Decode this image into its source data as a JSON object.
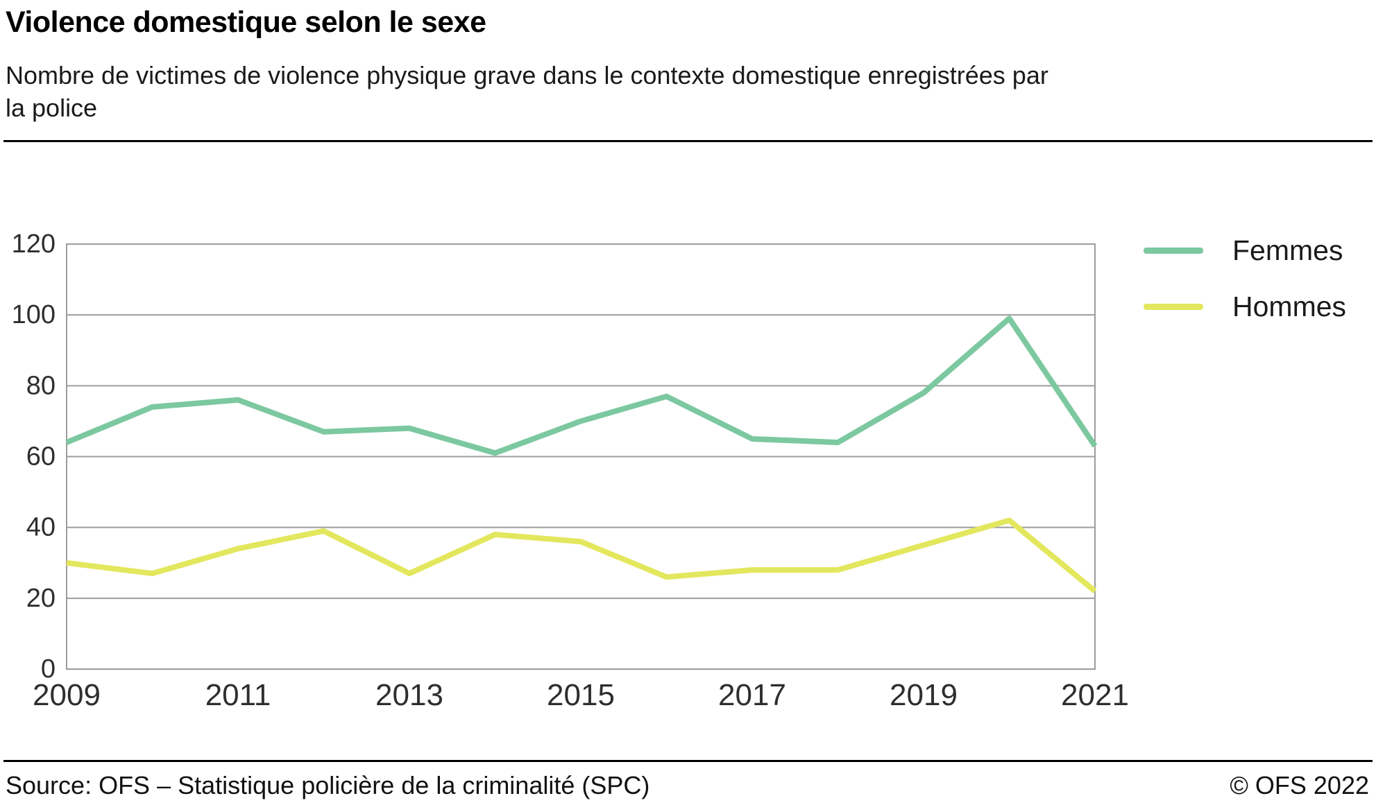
{
  "header": {
    "title": "Violence domestique selon le sexe",
    "subtitle": "Nombre de victimes de violence physique grave dans le contexte domestique enregistrées par la police"
  },
  "footer": {
    "source": "Source: OFS – Statistique policière de la criminalité (SPC)",
    "copyright": "© OFS 2022"
  },
  "chart_data": {
    "type": "line",
    "title": "Violence domestique selon le sexe",
    "subtitle": "Nombre de victimes de violence physique grave dans le contexte domestique enregistrées par la police",
    "x": [
      2009,
      2010,
      2011,
      2012,
      2013,
      2014,
      2015,
      2016,
      2017,
      2018,
      2019,
      2020,
      2021
    ],
    "series": [
      {
        "name": "Femmes",
        "color": "#7cc8a0",
        "values": [
          64,
          74,
          76,
          67,
          68,
          61,
          70,
          77,
          65,
          64,
          78,
          99,
          63
        ]
      },
      {
        "name": "Hommes",
        "color": "#e3e75d",
        "values": [
          30,
          27,
          34,
          39,
          27,
          38,
          36,
          26,
          28,
          28,
          35,
          42,
          22
        ]
      }
    ],
    "xlabel": "",
    "ylabel": "",
    "ylim": [
      0,
      120
    ],
    "ytick_step": 20,
    "ytick_labels": [
      "0",
      "20",
      "40",
      "60",
      "80",
      "100",
      "120"
    ],
    "xtick_labels": [
      "2009",
      "2011",
      "2013",
      "2015",
      "2017",
      "2019",
      "2021"
    ],
    "grid": "horizontal",
    "legend_position": "top-right"
  }
}
